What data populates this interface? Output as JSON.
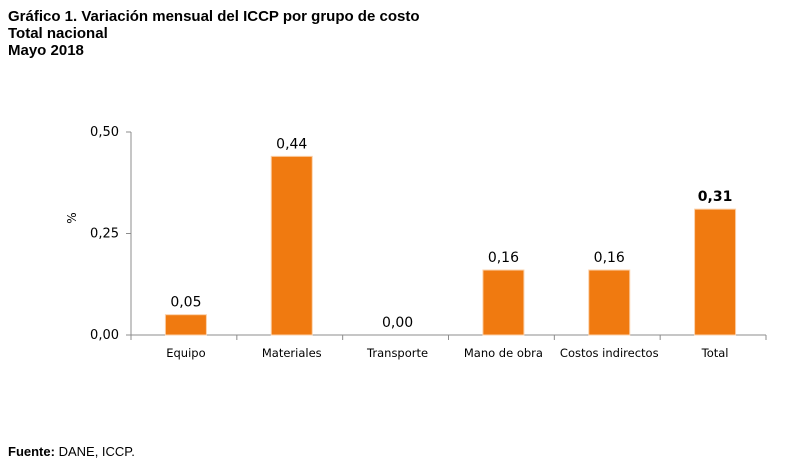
{
  "title": {
    "line1": "Gráfico 1. Variación mensual del ICCP por grupo de costo",
    "line2": "Total nacional",
    "line3": "Mayo 2018"
  },
  "source": {
    "label": "Fuente:",
    "text": "DANE, ICCP."
  },
  "colors": {
    "bar": "#F07A10",
    "bar_edge": "#FBD0A8",
    "axis": "#8c8c8c"
  },
  "chart_data": {
    "type": "bar",
    "title": "Gráfico 1. Variación mensual del ICCP por grupo de costo",
    "subtitle": "Total nacional, Mayo 2018",
    "xlabel": "",
    "ylabel": "%",
    "ylim": [
      0,
      0.5
    ],
    "yticks": [
      0.0,
      0.25,
      0.5
    ],
    "ytick_labels": [
      "0,00",
      "0,25",
      "0,50"
    ],
    "grid": false,
    "legend": "none",
    "categories": [
      "Equipo",
      "Materiales",
      "Transporte",
      "Mano de obra",
      "Costos indirectos",
      "Total"
    ],
    "values": [
      0.05,
      0.44,
      0.0,
      0.16,
      0.16,
      0.31
    ],
    "value_labels": [
      "0,05",
      "0,44",
      "0,00",
      "0,16",
      "0,16",
      "0,31"
    ],
    "bold_labels": [
      false,
      false,
      false,
      false,
      false,
      true
    ]
  }
}
